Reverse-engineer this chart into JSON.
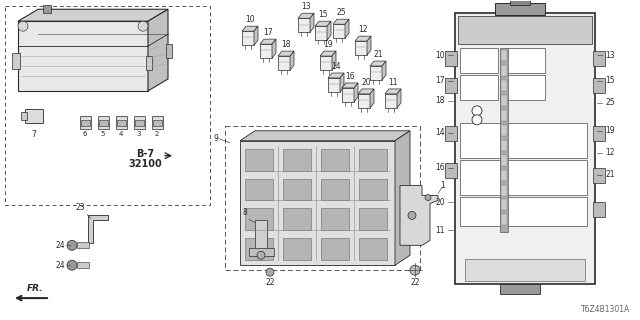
{
  "bg_color": "#ffffff",
  "line_color": "#2a2a2a",
  "diagram_code": "T6Z4B1301A",
  "figsize": [
    6.4,
    3.2
  ],
  "dpi": 100
}
